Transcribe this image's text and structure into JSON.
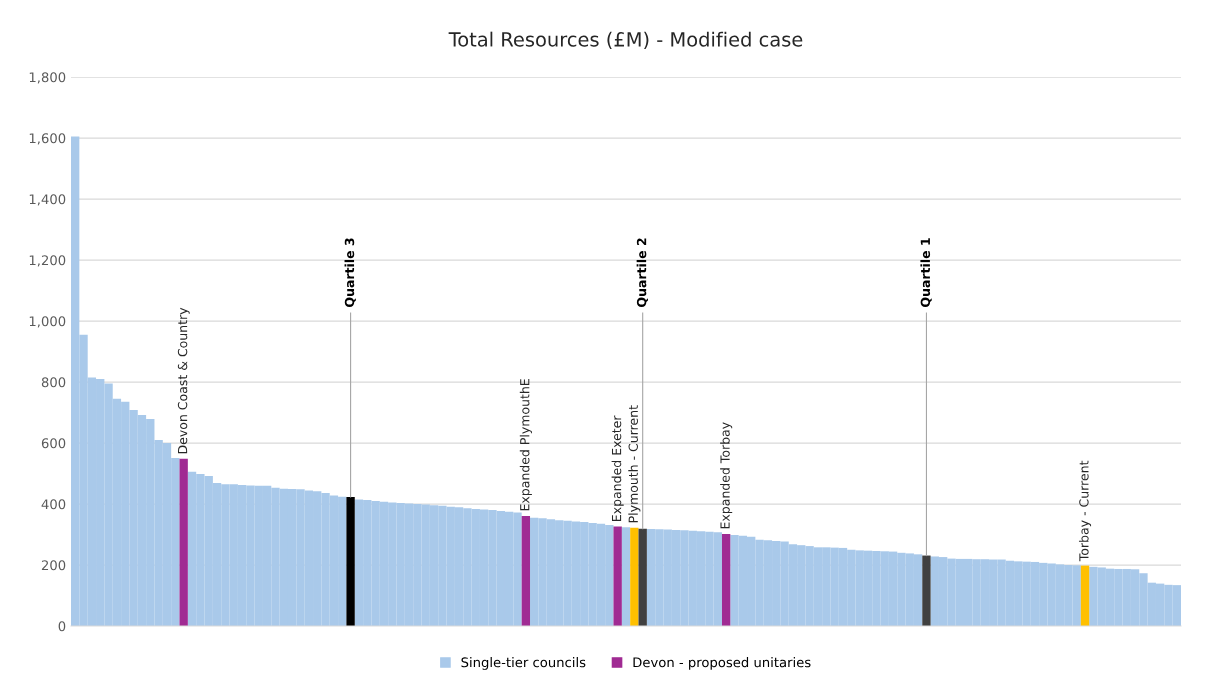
{
  "chart_data": {
    "type": "bar",
    "title": "Total Resources (£M) - Modified case",
    "categories": [
      null,
      null,
      null,
      null,
      null,
      null,
      null,
      null,
      null,
      null,
      null,
      null,
      null,
      null,
      null,
      null,
      null,
      null,
      null,
      null,
      null,
      null,
      null,
      null,
      null,
      null,
      null,
      null,
      null,
      null,
      null,
      null,
      null,
      null,
      null,
      null,
      null,
      null,
      null,
      null,
      null,
      null,
      null,
      null,
      null,
      null,
      null,
      null,
      null,
      null,
      null,
      null,
      null,
      null,
      null,
      null,
      null,
      null,
      null,
      null,
      null,
      null,
      null,
      null,
      null,
      null,
      null,
      null,
      null,
      null,
      null,
      null,
      null,
      null,
      null,
      null,
      null,
      null,
      null,
      null,
      null,
      null,
      null,
      null,
      null,
      null,
      null,
      null,
      null,
      null,
      null,
      null,
      null,
      null,
      null,
      null,
      null,
      null,
      null,
      null,
      null,
      null,
      null,
      null,
      null,
      null,
      null,
      null,
      null,
      null,
      null,
      null,
      null,
      null,
      null,
      null,
      null,
      null,
      null,
      null,
      null,
      null,
      null,
      null,
      null,
      null,
      null,
      null,
      null,
      null,
      null,
      null,
      null
    ],
    "series": [
      {
        "name": "Single-tier councils",
        "color": "#a9c9ea",
        "values": [
          1605,
          955,
          815,
          810,
          795,
          745,
          735,
          708,
          692,
          679,
          610,
          600,
          551,
          null,
          506,
          498,
          492,
          469,
          465,
          465,
          462,
          461,
          460,
          460,
          453,
          450,
          449,
          448,
          444,
          442,
          436,
          428,
          424,
          null,
          415,
          413,
          410,
          407,
          405,
          403,
          402,
          400,
          398,
          396,
          394,
          391,
          389,
          386,
          384,
          382,
          380,
          377,
          375,
          372,
          null,
          355,
          353,
          350,
          347,
          345,
          343,
          341,
          338,
          335,
          331,
          null,
          324,
          null,
          null,
          318,
          317,
          316,
          315,
          314,
          312,
          311,
          309,
          307,
          null,
          298,
          296,
          293,
          283,
          281,
          279,
          277,
          268,
          265,
          262,
          258,
          258,
          257,
          256,
          250,
          248,
          247,
          246,
          245,
          244,
          240,
          238,
          235,
          null,
          228,
          226,
          221,
          220,
          220,
          219,
          219,
          218,
          218,
          214,
          212,
          211,
          210,
          207,
          205,
          202,
          200,
          199,
          null,
          194,
          192,
          188,
          187,
          187,
          186,
          173,
          142,
          139,
          135,
          134
        ]
      },
      {
        "name": "Devon - proposed unitaries",
        "color": "#a02b93",
        "values": [
          null,
          null,
          null,
          null,
          null,
          null,
          null,
          null,
          null,
          null,
          null,
          null,
          null,
          548,
          null,
          null,
          null,
          null,
          null,
          null,
          null,
          null,
          null,
          null,
          null,
          null,
          null,
          null,
          null,
          null,
          null,
          null,
          null,
          null,
          null,
          null,
          null,
          null,
          null,
          null,
          null,
          null,
          null,
          null,
          null,
          null,
          null,
          null,
          null,
          null,
          null,
          null,
          null,
          null,
          361,
          null,
          null,
          null,
          null,
          null,
          null,
          null,
          null,
          null,
          null,
          326,
          null,
          null,
          null,
          null,
          null,
          null,
          null,
          null,
          null,
          null,
          null,
          null,
          302,
          null,
          null,
          null,
          null,
          null,
          null,
          null,
          null,
          null,
          null,
          null,
          null,
          null,
          null,
          null,
          null,
          null,
          null,
          null,
          null,
          null,
          null,
          null,
          null,
          null,
          null,
          null,
          null,
          null,
          null,
          null,
          null,
          null,
          null,
          null,
          null,
          null,
          null,
          null,
          null,
          null,
          null,
          null,
          null,
          null,
          null,
          null,
          null,
          null,
          null,
          null,
          null,
          null,
          null
        ],
        "value_labels": [
          null,
          null,
          null,
          null,
          null,
          null,
          null,
          null,
          null,
          null,
          null,
          null,
          null,
          "Devon Coast & Country",
          null,
          null,
          null,
          null,
          null,
          null,
          null,
          null,
          null,
          null,
          null,
          null,
          null,
          null,
          null,
          null,
          null,
          null,
          null,
          null,
          null,
          null,
          null,
          null,
          null,
          null,
          null,
          null,
          null,
          null,
          null,
          null,
          null,
          null,
          null,
          null,
          null,
          null,
          null,
          null,
          "Expanded PlymouthE",
          null,
          null,
          null,
          null,
          null,
          null,
          null,
          null,
          null,
          null,
          "Expanded Exeter",
          null,
          null,
          null,
          null,
          null,
          null,
          null,
          null,
          null,
          null,
          null,
          null,
          "Expanded Torbay",
          null,
          null,
          null,
          null,
          null,
          null,
          null,
          null,
          null,
          null,
          null,
          null,
          null,
          null,
          null,
          null,
          null,
          null,
          null,
          null,
          null,
          null,
          null,
          null,
          null,
          null,
          null,
          null,
          null,
          null,
          null,
          null,
          null,
          null,
          null,
          null,
          null,
          null,
          null,
          null,
          null,
          null,
          null,
          null,
          null,
          null,
          null,
          null,
          null,
          null,
          null,
          null,
          null,
          null
        ]
      },
      {
        "color": "#ffc000",
        "values": [
          null,
          null,
          null,
          null,
          null,
          null,
          null,
          null,
          null,
          null,
          null,
          null,
          null,
          null,
          null,
          null,
          null,
          null,
          null,
          null,
          null,
          null,
          null,
          null,
          null,
          null,
          null,
          null,
          null,
          null,
          null,
          null,
          null,
          null,
          null,
          null,
          null,
          null,
          null,
          null,
          null,
          null,
          null,
          null,
          null,
          null,
          null,
          null,
          null,
          null,
          null,
          null,
          null,
          null,
          null,
          null,
          null,
          null,
          null,
          null,
          null,
          null,
          null,
          null,
          null,
          null,
          null,
          322,
          null,
          null,
          null,
          null,
          null,
          null,
          null,
          null,
          null,
          null,
          null,
          null,
          null,
          null,
          null,
          null,
          null,
          null,
          null,
          null,
          null,
          null,
          null,
          null,
          null,
          null,
          null,
          null,
          null,
          null,
          null,
          null,
          null,
          null,
          null,
          null,
          null,
          null,
          null,
          null,
          null,
          null,
          null,
          null,
          null,
          null,
          null,
          null,
          null,
          null,
          null,
          null,
          null,
          198,
          null,
          null,
          null,
          null,
          null,
          null,
          null,
          null,
          null,
          null,
          null
        ],
        "value_labels": [
          null,
          null,
          null,
          null,
          null,
          null,
          null,
          null,
          null,
          null,
          null,
          null,
          null,
          null,
          null,
          null,
          null,
          null,
          null,
          null,
          null,
          null,
          null,
          null,
          null,
          null,
          null,
          null,
          null,
          null,
          null,
          null,
          null,
          null,
          null,
          null,
          null,
          null,
          null,
          null,
          null,
          null,
          null,
          null,
          null,
          null,
          null,
          null,
          null,
          null,
          null,
          null,
          null,
          null,
          null,
          null,
          null,
          null,
          null,
          null,
          null,
          null,
          null,
          null,
          null,
          null,
          null,
          "Plymouth - Current",
          null,
          null,
          null,
          null,
          null,
          null,
          null,
          null,
          null,
          null,
          null,
          null,
          null,
          null,
          null,
          null,
          null,
          null,
          null,
          null,
          null,
          null,
          null,
          null,
          null,
          null,
          null,
          null,
          null,
          null,
          null,
          null,
          null,
          null,
          null,
          null,
          null,
          null,
          null,
          null,
          null,
          null,
          null,
          null,
          null,
          null,
          null,
          null,
          null,
          null,
          null,
          null,
          null,
          "Torbay - Current",
          null,
          null,
          null,
          null,
          null,
          null,
          null,
          null,
          null,
          null,
          null
        ]
      },
      {
        "color": "#000000",
        "values": [
          null,
          null,
          null,
          null,
          null,
          null,
          null,
          null,
          null,
          null,
          null,
          null,
          null,
          null,
          null,
          null,
          null,
          null,
          null,
          null,
          null,
          null,
          null,
          null,
          null,
          null,
          null,
          null,
          null,
          null,
          null,
          null,
          null,
          423,
          null,
          null,
          null,
          null,
          null,
          null,
          null,
          null,
          null,
          null,
          null,
          null,
          null,
          null,
          null,
          null,
          null,
          null,
          null,
          null,
          null,
          null,
          null,
          null,
          null,
          null,
          null,
          null,
          null,
          null,
          null,
          null,
          null,
          null,
          null,
          null,
          null,
          null,
          null,
          null,
          null,
          null,
          null,
          null,
          null,
          null,
          null,
          null,
          null,
          null,
          null,
          null,
          null,
          null,
          null,
          null,
          null,
          null,
          null,
          null,
          null,
          null,
          null,
          null,
          null,
          null,
          null,
          null,
          null,
          null,
          null,
          null,
          null,
          null,
          null,
          null,
          null,
          null,
          null,
          null,
          null,
          null,
          null,
          null,
          null,
          null,
          null,
          null,
          null,
          null,
          null,
          null,
          null,
          null,
          null,
          null,
          null,
          null,
          null
        ],
        "value_labels": [
          null,
          null,
          null,
          null,
          null,
          null,
          null,
          null,
          null,
          null,
          null,
          null,
          null,
          null,
          null,
          null,
          null,
          null,
          null,
          null,
          null,
          null,
          null,
          null,
          null,
          null,
          null,
          null,
          null,
          null,
          null,
          null,
          null,
          "Quartile 3",
          null,
          null,
          null,
          null,
          null,
          null,
          null,
          null,
          null,
          null,
          null,
          null,
          null,
          null,
          null,
          null,
          null,
          null,
          null,
          null,
          null,
          null,
          null,
          null,
          null,
          null,
          null,
          null,
          null,
          null,
          null,
          null,
          null,
          null,
          null,
          null,
          null,
          null,
          null,
          null,
          null,
          null,
          null,
          null,
          null,
          null,
          null,
          null,
          null,
          null,
          null,
          null,
          null,
          null,
          null,
          null,
          null,
          null,
          null,
          null,
          null,
          null,
          null,
          null,
          null,
          null,
          null,
          null,
          null,
          null,
          null,
          null,
          null,
          null,
          null,
          null,
          null,
          null,
          null,
          null,
          null,
          null,
          null,
          null,
          null,
          null,
          null,
          null,
          null,
          null,
          null,
          null,
          null,
          null,
          null,
          null,
          null,
          null,
          null
        ]
      },
      {
        "color": "#404040",
        "values": [
          null,
          null,
          null,
          null,
          null,
          null,
          null,
          null,
          null,
          null,
          null,
          null,
          null,
          null,
          null,
          null,
          null,
          null,
          null,
          null,
          null,
          null,
          null,
          null,
          null,
          null,
          null,
          null,
          null,
          null,
          null,
          null,
          null,
          null,
          null,
          null,
          null,
          null,
          null,
          null,
          null,
          null,
          null,
          null,
          null,
          null,
          null,
          null,
          null,
          null,
          null,
          null,
          null,
          null,
          null,
          null,
          null,
          null,
          null,
          null,
          null,
          null,
          null,
          null,
          null,
          null,
          null,
          null,
          319,
          null,
          null,
          null,
          null,
          null,
          null,
          null,
          null,
          null,
          null,
          null,
          null,
          null,
          null,
          null,
          null,
          null,
          null,
          null,
          null,
          null,
          null,
          null,
          null,
          null,
          null,
          null,
          null,
          null,
          null,
          null,
          null,
          null,
          231,
          null,
          null,
          null,
          null,
          null,
          null,
          null,
          null,
          null,
          null,
          null,
          null,
          null,
          null,
          null,
          null,
          null,
          null,
          null,
          null,
          null,
          null,
          null,
          null,
          null,
          null,
          null,
          null,
          null,
          null
        ],
        "value_labels": [
          null,
          null,
          null,
          null,
          null,
          null,
          null,
          null,
          null,
          null,
          null,
          null,
          null,
          null,
          null,
          null,
          null,
          null,
          null,
          null,
          null,
          null,
          null,
          null,
          null,
          null,
          null,
          null,
          null,
          null,
          null,
          null,
          null,
          null,
          null,
          null,
          null,
          null,
          null,
          null,
          null,
          null,
          null,
          null,
          null,
          null,
          null,
          null,
          null,
          null,
          null,
          null,
          null,
          null,
          null,
          null,
          null,
          null,
          null,
          null,
          null,
          null,
          null,
          null,
          null,
          null,
          null,
          null,
          "Quartile 2",
          null,
          null,
          null,
          null,
          null,
          null,
          null,
          null,
          null,
          null,
          null,
          null,
          null,
          null,
          null,
          null,
          null,
          null,
          null,
          null,
          null,
          null,
          null,
          null,
          null,
          null,
          null,
          null,
          null,
          null,
          null,
          null,
          null,
          "Quartile 1",
          null,
          null,
          null,
          null,
          null,
          null,
          null,
          null,
          null,
          null,
          null,
          null,
          null,
          null,
          null,
          null,
          null,
          null,
          null,
          null,
          null,
          null,
          null,
          null,
          null,
          null,
          null,
          null,
          null,
          null
        ]
      }
    ],
    "ylim": [
      0,
      1800
    ],
    "yticks": [
      0,
      200,
      400,
      600,
      800,
      {
        "value": 1000,
        "label": "1,000"
      },
      {
        "value": 1200,
        "label": "1,200"
      },
      {
        "value": 1400,
        "label": "1,400"
      },
      {
        "value": 1600,
        "label": "1,600"
      },
      {
        "value": 1800,
        "label": "1,800"
      }
    ],
    "grid": "y",
    "legend": "bottom"
  }
}
